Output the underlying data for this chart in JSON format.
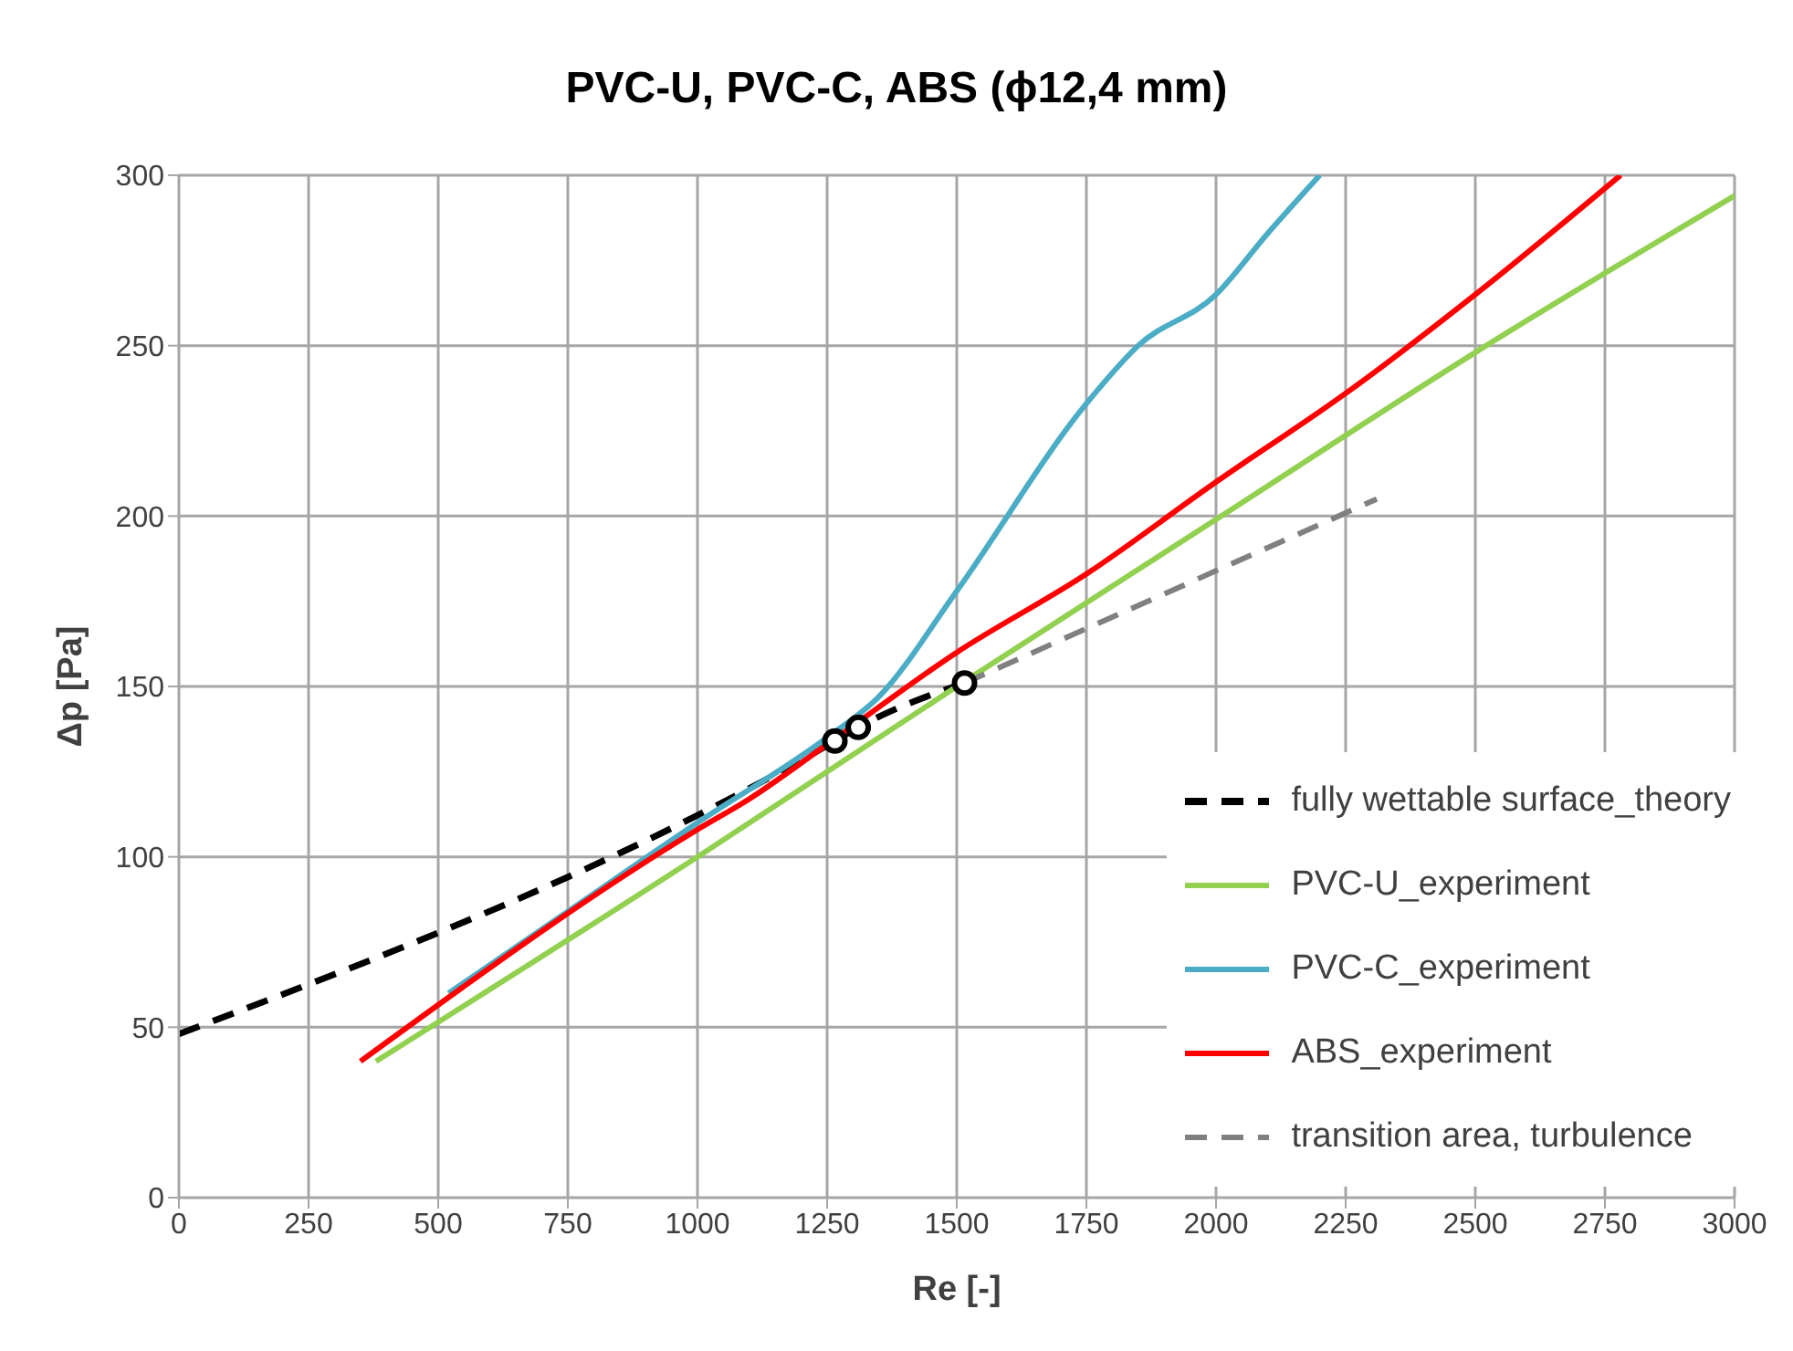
{
  "chart_data": {
    "type": "line",
    "title": "PVC-U, PVC-C, ABS (ϕ12,4 mm)",
    "xlabel": "Re [-]",
    "ylabel": "Δp [Pa]",
    "xlim": [
      0,
      3000
    ],
    "xticks": [
      0,
      250,
      500,
      750,
      1000,
      1250,
      1500,
      1750,
      2000,
      2250,
      2500,
      2750,
      3000
    ],
    "ylim": [
      0,
      300
    ],
    "yticks": [
      0,
      50,
      100,
      150,
      200,
      250,
      300
    ],
    "grid": true,
    "legend": "bottom right",
    "marker": "none",
    "series": [
      {
        "name": "fully wettable surface_theory",
        "color": "#000000",
        "line_style": "dashed",
        "x": [
          0,
          1265,
          1310,
          1515
        ],
        "values": [
          48,
          134,
          138,
          151
        ]
      },
      {
        "name": "PVC-U_experiment",
        "color": "#92d050",
        "line_style": "solid",
        "x": [
          380,
          1000,
          1500,
          2000,
          2500,
          3000
        ],
        "values": [
          40,
          100,
          150,
          199,
          248,
          294
        ]
      },
      {
        "name": "PVC-C_experiment",
        "color": "#4bacc6",
        "line_style": "solid",
        "x": [
          520,
          750,
          1000,
          1250,
          1350,
          1500,
          1750,
          1850,
          2000,
          2100,
          2200
        ],
        "values": [
          60,
          84,
          110,
          135,
          147,
          178,
          233,
          250,
          265,
          283,
          300
        ]
      },
      {
        "name": "ABS_experiment",
        "color": "#ff0000",
        "line_style": "solid",
        "x": [
          350,
          1000,
          1100,
          1250,
          1500,
          1750,
          2000,
          2250,
          2500,
          2780
        ],
        "values": [
          40,
          108,
          117,
          133,
          160,
          183,
          210,
          236,
          265,
          300
        ]
      },
      {
        "name": "transition area, turbulence",
        "color": "#808080",
        "line_style": "dashed",
        "x": [
          1515,
          2310
        ],
        "values": [
          151,
          205
        ]
      },
      {
        "type": "scatter",
        "color": "#000000",
        "marker": "circle",
        "x": [
          1265,
          1310,
          1515
        ],
        "values": [
          134,
          138,
          151
        ]
      }
    ]
  }
}
